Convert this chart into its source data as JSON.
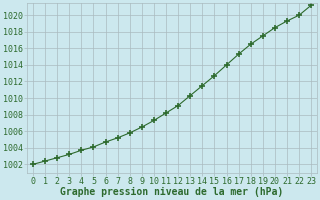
{
  "x": [
    0,
    1,
    2,
    3,
    4,
    5,
    6,
    7,
    8,
    9,
    10,
    11,
    12,
    13,
    14,
    15,
    16,
    17,
    18,
    19,
    20,
    21,
    22,
    23
  ],
  "y": [
    1002.0,
    1002.4,
    1002.8,
    1003.2,
    1003.7,
    1004.1,
    1004.7,
    1005.2,
    1005.8,
    1006.5,
    1007.3,
    1008.2,
    1009.1,
    1010.3,
    1011.5,
    1012.7,
    1014.0,
    1015.3,
    1016.5,
    1017.5,
    1018.5,
    1019.3,
    1020.0,
    1021.2
  ],
  "line_color": "#2d6a2d",
  "marker": "+",
  "marker_size": 5,
  "marker_lw": 1.2,
  "line_width": 0.8,
  "bg_color": "#cce8ee",
  "grid_color": "#aabbbf",
  "xlabel": "Graphe pression niveau de la mer (hPa)",
  "ylim": [
    1001.0,
    1021.5
  ],
  "yticks": [
    1002,
    1004,
    1006,
    1008,
    1010,
    1012,
    1014,
    1016,
    1018,
    1020
  ],
  "xticks": [
    0,
    1,
    2,
    3,
    4,
    5,
    6,
    7,
    8,
    9,
    10,
    11,
    12,
    13,
    14,
    15,
    16,
    17,
    18,
    19,
    20,
    21,
    22,
    23
  ],
  "xlabel_fontsize": 7.0,
  "tick_fontsize": 6.0
}
